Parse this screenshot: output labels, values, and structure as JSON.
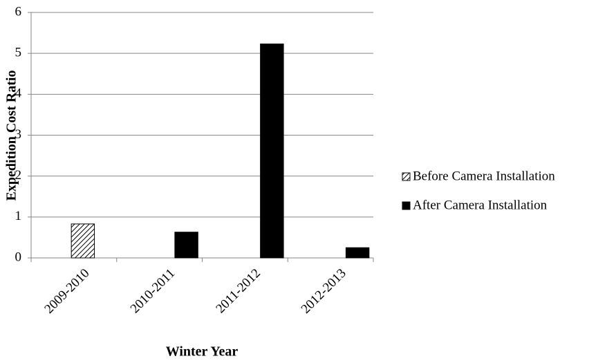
{
  "chart_data": {
    "type": "bar",
    "x_label": "Winter Year",
    "y_label": "Expedition Cost Ratio",
    "categories": [
      "2009-2010",
      "2010-2011",
      "2011-2012",
      "2012-2013"
    ],
    "series": [
      {
        "name": "Before Camera Installation",
        "color": "#000000",
        "pattern": "hatch",
        "values": [
          0.83,
          null,
          null,
          null
        ]
      },
      {
        "name": "After Camera Installation",
        "color": "#000000",
        "pattern": "solid",
        "values": [
          null,
          0.63,
          5.23,
          0.25
        ]
      }
    ],
    "ylim": [
      0,
      6
    ],
    "yticks": [
      0,
      1,
      2,
      3,
      4,
      5,
      6
    ],
    "grid": true,
    "legend": "right"
  }
}
